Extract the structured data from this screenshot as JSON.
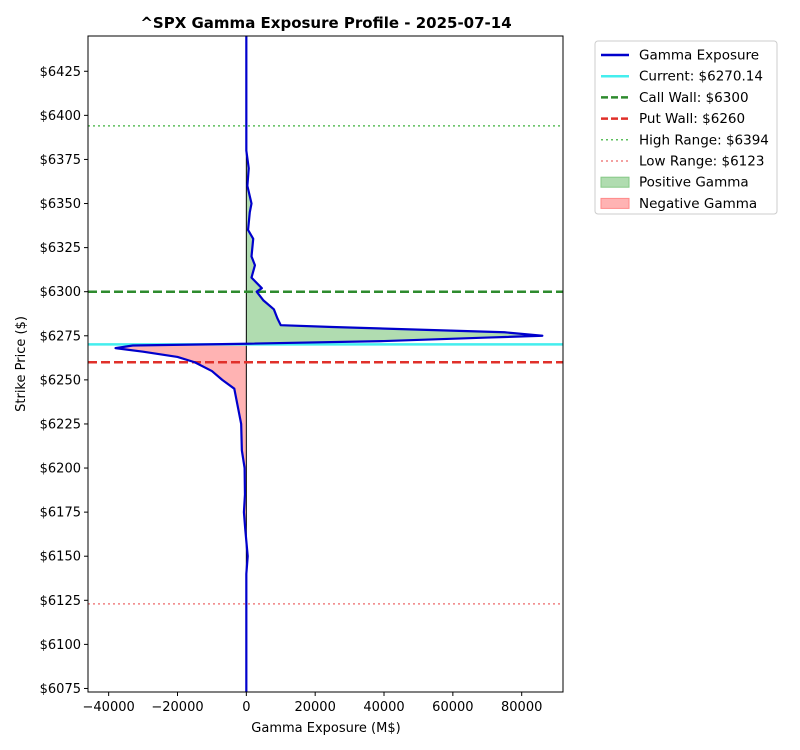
{
  "chart_data": {
    "type": "line",
    "title": "^SPX Gamma Exposure Profile - 2025-07-14",
    "xlabel": "Gamma Exposure (M$)",
    "ylabel": "Strike Price ($)",
    "xlim": [
      -46000,
      92000
    ],
    "ylim": [
      6073,
      6445
    ],
    "x_ticks": [
      -40000,
      -20000,
      0,
      20000,
      40000,
      60000,
      80000
    ],
    "x_tick_labels": [
      "−40000",
      "−20000",
      "0",
      "20000",
      "40000",
      "60000",
      "80000"
    ],
    "y_ticks": [
      6075,
      6100,
      6125,
      6150,
      6175,
      6200,
      6225,
      6250,
      6275,
      6300,
      6325,
      6350,
      6375,
      6400,
      6425
    ],
    "y_tick_labels": [
      "$6075",
      "$6100",
      "$6125",
      "$6150",
      "$6175",
      "$6200",
      "$6225",
      "$6250",
      "$6275",
      "$6300",
      "$6325",
      "$6350",
      "$6375",
      "$6400",
      "$6425"
    ],
    "grid": false,
    "legend_position": "outside-right",
    "series": [
      {
        "name": "Gamma Exposure",
        "color": "#0000cc",
        "points": [
          [
            0,
            6073
          ],
          [
            0,
            6100
          ],
          [
            0,
            6140
          ],
          [
            400,
            6150
          ],
          [
            -300,
            6165
          ],
          [
            -700,
            6175
          ],
          [
            -400,
            6185
          ],
          [
            -500,
            6200
          ],
          [
            -1300,
            6210
          ],
          [
            -1500,
            6225
          ],
          [
            -2500,
            6235
          ],
          [
            -3500,
            6245
          ],
          [
            -7000,
            6250
          ],
          [
            -10000,
            6255
          ],
          [
            -15000,
            6260
          ],
          [
            -20000,
            6263
          ],
          [
            -30000,
            6266
          ],
          [
            -38000,
            6268
          ],
          [
            -33000,
            6269.5
          ],
          [
            0,
            6270.5
          ],
          [
            40000,
            6272
          ],
          [
            70000,
            6274
          ],
          [
            86000,
            6275
          ],
          [
            75000,
            6277
          ],
          [
            25000,
            6280
          ],
          [
            10000,
            6281
          ],
          [
            9000,
            6285
          ],
          [
            8000,
            6290
          ],
          [
            5000,
            6295
          ],
          [
            3000,
            6300
          ],
          [
            4500,
            6302
          ],
          [
            1500,
            6308
          ],
          [
            2500,
            6315
          ],
          [
            1500,
            6320
          ],
          [
            2000,
            6330
          ],
          [
            500,
            6335
          ],
          [
            1000,
            6345
          ],
          [
            1500,
            6350
          ],
          [
            300,
            6360
          ],
          [
            700,
            6370
          ],
          [
            0,
            6380
          ],
          [
            0,
            6445
          ]
        ]
      }
    ],
    "reference_lines": [
      {
        "name": "Current: $6270.14",
        "value": 6270.14,
        "color": "#44eeee",
        "style": "solid"
      },
      {
        "name": "Call Wall: $6300",
        "value": 6300,
        "color": "#2e8b2e",
        "style": "dashed"
      },
      {
        "name": "Put Wall: $6260",
        "value": 6260,
        "color": "#e0302a",
        "style": "dashed"
      },
      {
        "name": "High Range: $6394",
        "value": 6394,
        "color": "#5cbf5c",
        "style": "dotted"
      },
      {
        "name": "Low Range: $6123",
        "value": 6123,
        "color": "#f08080",
        "style": "dotted"
      }
    ],
    "fills": [
      {
        "name": "Positive Gamma",
        "color": "#86c986"
      },
      {
        "name": "Negative Gamma",
        "color": "#ff8a8a"
      }
    ]
  }
}
